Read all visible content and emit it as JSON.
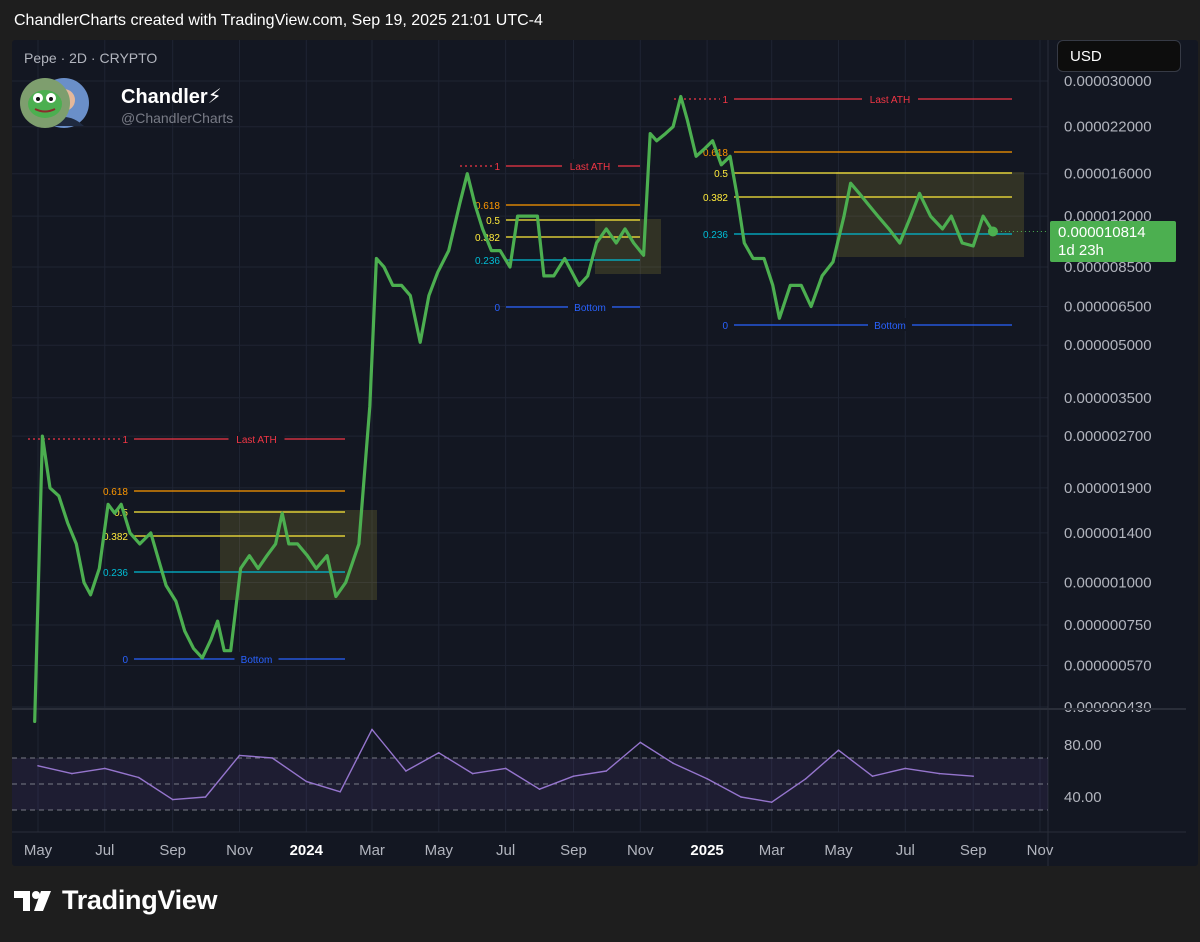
{
  "header": {
    "attribution": "ChandlerCharts created with TradingView.com, Sep 19, 2025 21:01 UTC-4"
  },
  "symbol_line": "Pepe · 2D · CRYPTO",
  "author": {
    "name": "Chandler⚡",
    "handle": "@ChandlerCharts"
  },
  "currency_button": "USD",
  "price_tag": {
    "price": "0.000010814",
    "countdown": "1d 23h"
  },
  "footer": {
    "brand": "TradingView"
  },
  "colors": {
    "price_line": "#4caf50",
    "rsi_line": "#9575cd",
    "ath_line": "#f23645",
    "fib_618": "#ff9800",
    "fib_5": "#ffeb3b",
    "fib_382": "#ffeb3b",
    "fib_236": "#00bcd4",
    "bottom_line": "#2962ff"
  },
  "chart_data": [
    {
      "type": "line",
      "title": "",
      "yscale": "log",
      "y_tick_labels": [
        "0.000030000",
        "0.000022000",
        "0.000016000",
        "0.000012000",
        "0.000008500",
        "0.000006500",
        "0.000005000",
        "0.000003500",
        "0.000002700",
        "0.000001900",
        "0.000001400",
        "0.000001000",
        "0.000000750",
        "0.000000570",
        "0.000000430"
      ],
      "x_tick_labels": [
        "May",
        "Jul",
        "Sep",
        "Nov",
        "2024",
        "Mar",
        "May",
        "Jul",
        "Sep",
        "Nov",
        "2025",
        "Mar",
        "May",
        "Jul",
        "Sep",
        "Nov"
      ],
      "series": [
        {
          "values": [
            [
              "2023-04-28",
              3.9e-07
            ],
            [
              "2023-05-05",
              2.7e-06
            ],
            [
              "2023-05-12",
              1.9e-06
            ],
            [
              "2023-05-20",
              1.8e-06
            ],
            [
              "2023-05-28",
              1.5e-06
            ],
            [
              "2023-06-05",
              1.3e-06
            ],
            [
              "2023-06-12",
              1e-06
            ],
            [
              "2023-06-18",
              9.2e-07
            ],
            [
              "2023-06-26",
              1.1e-06
            ],
            [
              "2023-07-04",
              1.7e-06
            ],
            [
              "2023-07-10",
              1.6e-06
            ],
            [
              "2023-07-16",
              1.7e-06
            ],
            [
              "2023-07-24",
              1.4e-06
            ],
            [
              "2023-08-02",
              1.3e-06
            ],
            [
              "2023-08-12",
              1.4e-06
            ],
            [
              "2023-08-18",
              1.2e-06
            ],
            [
              "2023-08-26",
              9.8e-07
            ],
            [
              "2023-09-04",
              8.8e-07
            ],
            [
              "2023-09-12",
              7.2e-07
            ],
            [
              "2023-09-20",
              6.4e-07
            ],
            [
              "2023-09-28",
              6e-07
            ],
            [
              "2023-10-06",
              6.8e-07
            ],
            [
              "2023-10-12",
              7.7e-07
            ],
            [
              "2023-10-18",
              6.3e-07
            ],
            [
              "2023-10-24",
              6.3e-07
            ],
            [
              "2023-11-02",
              1.1e-06
            ],
            [
              "2023-11-10",
              1.2e-06
            ],
            [
              "2023-11-18",
              1.1e-06
            ],
            [
              "2023-11-26",
              1.2e-06
            ],
            [
              "2023-12-04",
              1.3e-06
            ],
            [
              "2023-12-10",
              1.6e-06
            ],
            [
              "2023-12-16",
              1.3e-06
            ],
            [
              "2023-12-24",
              1.3e-06
            ],
            [
              "2024-01-02",
              1.2e-06
            ],
            [
              "2024-01-10",
              1.1e-06
            ],
            [
              "2024-01-20",
              1.2e-06
            ],
            [
              "2024-01-28",
              9.1e-07
            ],
            [
              "2024-02-06",
              1e-06
            ],
            [
              "2024-02-18",
              1.3e-06
            ],
            [
              "2024-02-28",
              3.3e-06
            ],
            [
              "2024-03-05",
              9e-06
            ],
            [
              "2024-03-12",
              8.5e-06
            ],
            [
              "2024-03-20",
              7.5e-06
            ],
            [
              "2024-03-28",
              7.5e-06
            ],
            [
              "2024-04-05",
              7e-06
            ],
            [
              "2024-04-14",
              5.1e-06
            ],
            [
              "2024-04-22",
              7e-06
            ],
            [
              "2024-04-30",
              8.2e-06
            ],
            [
              "2024-05-10",
              9.5e-06
            ],
            [
              "2024-05-20",
              1.3e-05
            ],
            [
              "2024-05-27",
              1.6e-05
            ],
            [
              "2024-06-03",
              1.3e-05
            ],
            [
              "2024-06-10",
              1.1e-05
            ],
            [
              "2024-06-18",
              9.5e-06
            ],
            [
              "2024-06-26",
              9.5e-06
            ],
            [
              "2024-07-05",
              8.5e-06
            ],
            [
              "2024-07-12",
              1.2e-05
            ],
            [
              "2024-07-22",
              1.2e-05
            ],
            [
              "2024-07-30",
              1.2e-05
            ],
            [
              "2024-08-05",
              8e-06
            ],
            [
              "2024-08-14",
              8e-06
            ],
            [
              "2024-08-24",
              9e-06
            ],
            [
              "2024-09-06",
              7.5e-06
            ],
            [
              "2024-09-14",
              8e-06
            ],
            [
              "2024-09-22",
              1e-05
            ],
            [
              "2024-10-01",
              1.1e-05
            ],
            [
              "2024-10-10",
              1e-05
            ],
            [
              "2024-10-18",
              1.1e-05
            ],
            [
              "2024-10-26",
              1e-05
            ],
            [
              "2024-11-04",
              9.2e-06
            ],
            [
              "2024-11-10",
              2.1e-05
            ],
            [
              "2024-11-16",
              2e-05
            ],
            [
              "2024-11-24",
              2.1e-05
            ],
            [
              "2024-12-01",
              2.2e-05
            ],
            [
              "2024-12-08",
              2.7e-05
            ],
            [
              "2024-12-14",
              2.3e-05
            ],
            [
              "2024-12-22",
              1.8e-05
            ],
            [
              "2024-12-30",
              1.9e-05
            ],
            [
              "2025-01-06",
              2e-05
            ],
            [
              "2025-01-14",
              1.7e-05
            ],
            [
              "2025-01-22",
              1.8e-05
            ],
            [
              "2025-01-28",
              1.4e-05
            ],
            [
              "2025-02-04",
              1e-05
            ],
            [
              "2025-02-12",
              9e-06
            ],
            [
              "2025-02-22",
              9e-06
            ],
            [
              "2025-03-02",
              7.5e-06
            ],
            [
              "2025-03-08",
              6e-06
            ],
            [
              "2025-03-18",
              7.5e-06
            ],
            [
              "2025-03-28",
              7.5e-06
            ],
            [
              "2025-04-06",
              6.5e-06
            ],
            [
              "2025-04-16",
              8e-06
            ],
            [
              "2025-04-26",
              8.8e-06
            ],
            [
              "2025-05-06",
              1.2e-05
            ],
            [
              "2025-05-12",
              1.5e-05
            ],
            [
              "2025-05-20",
              1.4e-05
            ],
            [
              "2025-05-28",
              1.3e-05
            ],
            [
              "2025-06-06",
              1.2e-05
            ],
            [
              "2025-06-16",
              1.1e-05
            ],
            [
              "2025-06-26",
              1e-05
            ],
            [
              "2025-07-06",
              1.2e-05
            ],
            [
              "2025-07-14",
              1.4e-05
            ],
            [
              "2025-07-24",
              1.2e-05
            ],
            [
              "2025-08-04",
              1.1e-05
            ],
            [
              "2025-08-12",
              1.2e-05
            ],
            [
              "2025-08-22",
              1e-05
            ],
            [
              "2025-09-01",
              9.8e-06
            ],
            [
              "2025-09-10",
              1.2e-05
            ],
            [
              "2025-09-19",
              1.0814e-05
            ]
          ]
        }
      ],
      "annotations": [
        {
          "text": "Last ATH",
          "fib": "1"
        },
        {
          "text": "Bottom",
          "fib": "0"
        },
        {
          "fib_levels": [
            "1",
            "0.618",
            "0.5",
            "0.382",
            "0.236",
            "0"
          ]
        }
      ]
    },
    {
      "type": "line",
      "title": "",
      "y_tick_labels": [
        "80.00",
        "40.00"
      ],
      "series": [
        {
          "values": [
            [
              "2023-05-01",
              64
            ],
            [
              "2023-06-01",
              58
            ],
            [
              "2023-07-01",
              62
            ],
            [
              "2023-08-01",
              55
            ],
            [
              "2023-09-01",
              38
            ],
            [
              "2023-10-01",
              40
            ],
            [
              "2023-11-01",
              72
            ],
            [
              "2023-12-01",
              70
            ],
            [
              "2024-01-01",
              52
            ],
            [
              "2024-02-01",
              44
            ],
            [
              "2024-03-01",
              92
            ],
            [
              "2024-04-01",
              60
            ],
            [
              "2024-05-01",
              74
            ],
            [
              "2024-06-01",
              58
            ],
            [
              "2024-07-01",
              62
            ],
            [
              "2024-08-01",
              46
            ],
            [
              "2024-09-01",
              56
            ],
            [
              "2024-10-01",
              60
            ],
            [
              "2024-11-01",
              82
            ],
            [
              "2024-12-01",
              66
            ],
            [
              "2025-01-01",
              54
            ],
            [
              "2025-02-01",
              40
            ],
            [
              "2025-03-01",
              36
            ],
            [
              "2025-04-01",
              54
            ],
            [
              "2025-05-01",
              76
            ],
            [
              "2025-06-01",
              56
            ],
            [
              "2025-07-01",
              62
            ],
            [
              "2025-08-01",
              58
            ],
            [
              "2025-09-01",
              56
            ]
          ]
        }
      ]
    }
  ]
}
